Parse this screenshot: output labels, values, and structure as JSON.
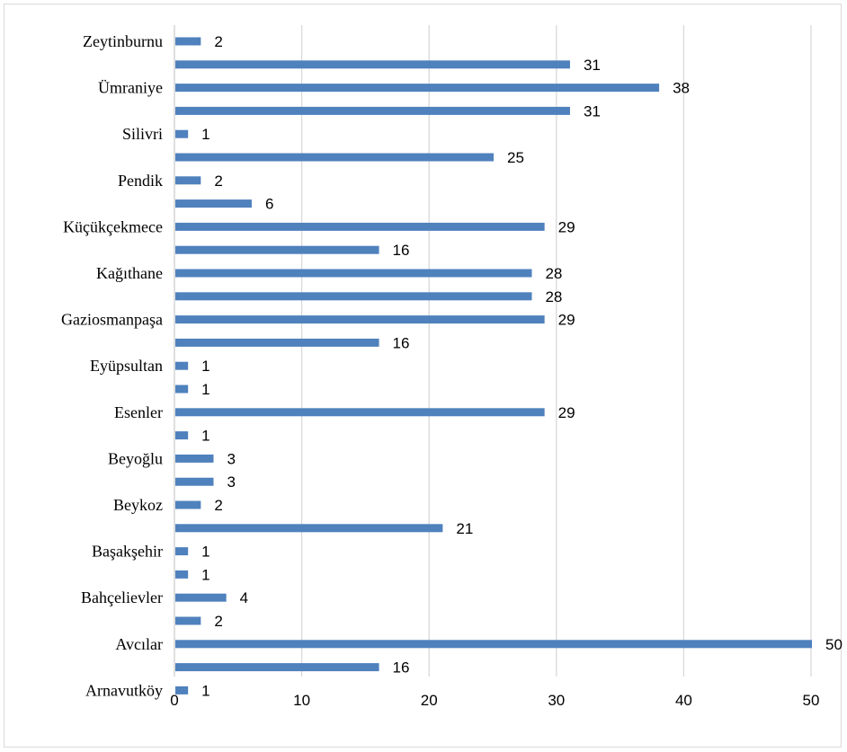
{
  "chart_data": {
    "type": "bar",
    "orientation": "horizontal",
    "title": "",
    "xlabel": "",
    "ylabel": "",
    "xlim": [
      0,
      50
    ],
    "x_ticks": [
      0,
      10,
      20,
      30,
      40,
      50
    ],
    "grid": "vertical",
    "legend": "none",
    "bar_color": "#4f81bd",
    "rows": [
      {
        "label": "Zeytinburnu",
        "value": 2
      },
      {
        "label": "",
        "value": 31
      },
      {
        "label": "Ümraniye",
        "value": 38
      },
      {
        "label": "",
        "value": 31
      },
      {
        "label": "Silivri",
        "value": 1
      },
      {
        "label": "",
        "value": 25
      },
      {
        "label": "Pendik",
        "value": 2
      },
      {
        "label": "",
        "value": 6
      },
      {
        "label": "Küçükçekmece",
        "value": 29
      },
      {
        "label": "",
        "value": 16
      },
      {
        "label": "Kağıthane",
        "value": 28
      },
      {
        "label": "",
        "value": 28
      },
      {
        "label": "Gaziosmanpaşa",
        "value": 29
      },
      {
        "label": "",
        "value": 16
      },
      {
        "label": "Eyüpsultan",
        "value": 1
      },
      {
        "label": "",
        "value": 1
      },
      {
        "label": "Esenler",
        "value": 29
      },
      {
        "label": "",
        "value": 1
      },
      {
        "label": "Beyoğlu",
        "value": 3
      },
      {
        "label": "",
        "value": 3
      },
      {
        "label": "Beykoz",
        "value": 2
      },
      {
        "label": "",
        "value": 21
      },
      {
        "label": "Başakşehir",
        "value": 1
      },
      {
        "label": "",
        "value": 1
      },
      {
        "label": "Bahçelievler",
        "value": 4
      },
      {
        "label": "",
        "value": 2
      },
      {
        "label": "Avcılar",
        "value": 50
      },
      {
        "label": "",
        "value": 16
      },
      {
        "label": "Arnavutköy",
        "value": 1
      }
    ]
  }
}
